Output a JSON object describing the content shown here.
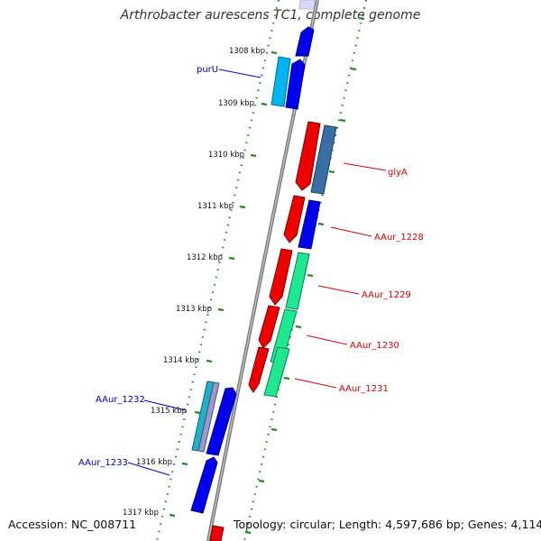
{
  "title": "Arthrobacter aurescens TC1, complete genome",
  "accession_text": "Accession: NC_008711",
  "summary_text": "Topology: circular; Length: 4,597,686 bp; Genes: 4,114",
  "colors": {
    "backbone": "#8c8c8c",
    "tick": "#228b22",
    "forward_gene": "#0000ee",
    "reverse_gene": "#ee0000",
    "cyan": "#00b4f0",
    "seagreen": "#20e890",
    "steelblue": "#3a6ea5",
    "label_forward": "#0000c8",
    "label_reverse": "#dd0000"
  },
  "kbp_labels": [
    {
      "text": "1308 kbp"
    },
    {
      "text": "1309 kbp"
    },
    {
      "text": "1310 kbp"
    },
    {
      "text": "1311 kbp"
    },
    {
      "text": "1312 kbp"
    },
    {
      "text": "1313 kbp"
    },
    {
      "text": "1314 kbp"
    },
    {
      "text": "1315 kbp"
    },
    {
      "text": "1316 kbp"
    },
    {
      "text": "1317 kbp"
    }
  ],
  "gene_labels": [
    {
      "text": "purU",
      "strand": "forward"
    },
    {
      "text": "glyA",
      "strand": "reverse"
    },
    {
      "text": "AAur_1228",
      "strand": "reverse"
    },
    {
      "text": "AAur_1229",
      "strand": "reverse"
    },
    {
      "text": "AAur_1230",
      "strand": "reverse"
    },
    {
      "text": "AAur_1231",
      "strand": "reverse"
    },
    {
      "text": "AAur_1232",
      "strand": "forward"
    },
    {
      "text": "AAur_1233",
      "strand": "forward"
    }
  ]
}
